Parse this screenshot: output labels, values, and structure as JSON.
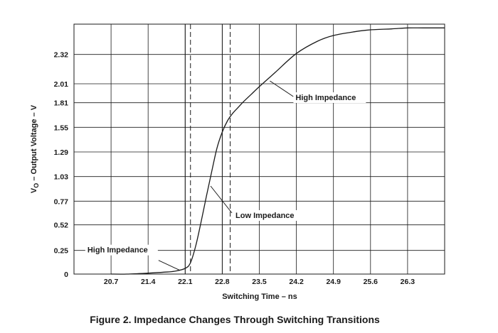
{
  "chart_data": {
    "type": "line",
    "title": "",
    "caption": "Figure 2.  Impedance Changes Through Switching Transitions",
    "xlabel": "Switching Time – ns",
    "ylabel_main": "V",
    "ylabel_sub": "O",
    "ylabel_rest": " – Output Voltage – V",
    "xlim": [
      20.0,
      27.0
    ],
    "ylim": [
      0,
      2.64
    ],
    "x_ticks": [
      "20.7",
      "21.4",
      "22.1",
      "22.8",
      "23.5",
      "24.2",
      "24.9",
      "25.6",
      "26.3"
    ],
    "y_ticks": [
      "0",
      "0.25",
      "0.52",
      "0.77",
      "1.03",
      "1.29",
      "1.55",
      "1.81",
      "2.01",
      "2.32"
    ],
    "grid": true,
    "legend": "none",
    "series": [
      {
        "x": [
          20.7,
          21.0,
          21.4,
          21.7,
          21.9,
          22.1,
          22.2,
          22.3,
          22.4,
          22.5,
          22.6,
          22.7,
          22.8,
          22.9,
          23.0,
          23.1,
          23.2,
          23.35,
          23.5,
          23.8,
          24.2,
          24.6,
          24.9,
          25.3,
          25.6,
          26.0,
          26.3,
          26.6,
          27.0
        ],
        "y": [
          0.0,
          0.0,
          0.01,
          0.02,
          0.03,
          0.06,
          0.12,
          0.3,
          0.55,
          0.82,
          1.08,
          1.33,
          1.5,
          1.62,
          1.7,
          1.76,
          1.82,
          1.9,
          1.98,
          2.13,
          2.33,
          2.46,
          2.52,
          2.56,
          2.58,
          2.59,
          2.6,
          2.6,
          2.6
        ]
      }
    ],
    "markers": [
      {
        "x": 22.1,
        "style": "solid"
      },
      {
        "x": 22.2,
        "style": "dashed"
      },
      {
        "x": 22.8,
        "style": "solid"
      },
      {
        "x": 22.95,
        "style": "dashed"
      }
    ],
    "annotations": [
      {
        "text": "High Impedance",
        "x": 22.0,
        "y": 0.04
      },
      {
        "text": "Low Impedance",
        "x": 22.58,
        "y": 0.93
      },
      {
        "text": "High Impedance",
        "x": 23.7,
        "y": 2.04
      }
    ]
  }
}
